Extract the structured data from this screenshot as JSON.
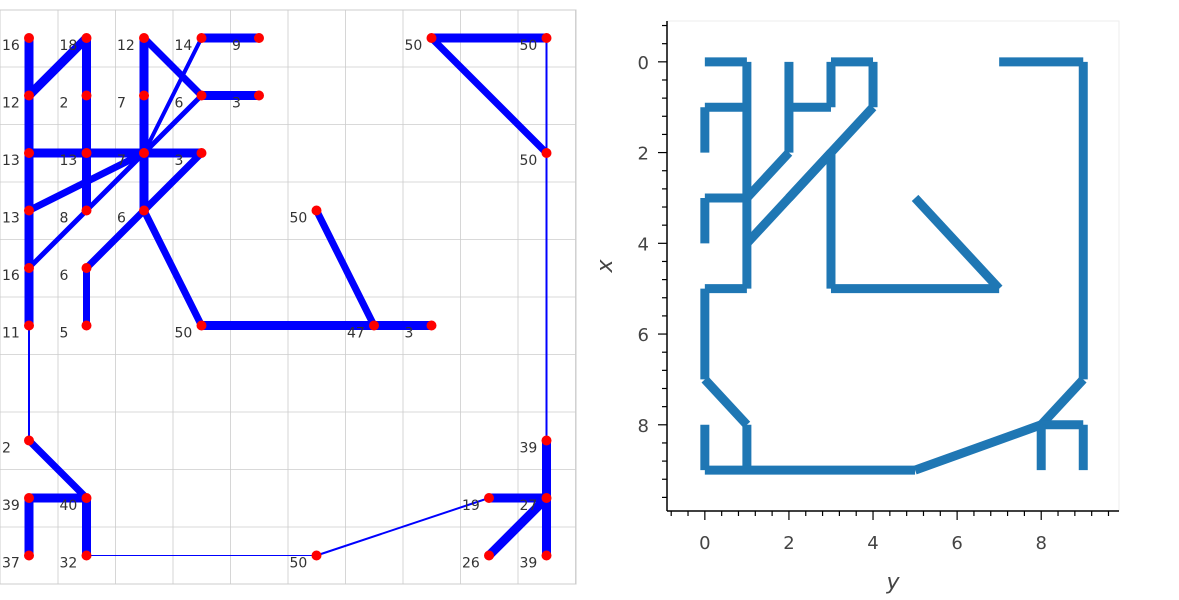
{
  "left_panel": {
    "cols": 10,
    "rows": 10,
    "node_color": "#ff0000",
    "edge_color": "#0000ff",
    "grid_color": "#cccccc",
    "nodes": [
      {
        "id": "n0",
        "c": 0,
        "r": 0,
        "label": "16"
      },
      {
        "id": "n1",
        "c": 1,
        "r": 0,
        "label": "18"
      },
      {
        "id": "n2",
        "c": 2,
        "r": 0,
        "label": "12"
      },
      {
        "id": "n3",
        "c": 3,
        "r": 0,
        "label": "14"
      },
      {
        "id": "n4",
        "c": 4,
        "r": 0,
        "label": "9"
      },
      {
        "id": "n5",
        "c": 7,
        "r": 0,
        "label": "50"
      },
      {
        "id": "n6",
        "c": 9,
        "r": 0,
        "label": "50"
      },
      {
        "id": "n7",
        "c": 0,
        "r": 1,
        "label": "12"
      },
      {
        "id": "n8",
        "c": 1,
        "r": 1,
        "label": "2"
      },
      {
        "id": "n9",
        "c": 2,
        "r": 1,
        "label": "7"
      },
      {
        "id": "n10",
        "c": 3,
        "r": 1,
        "label": "6"
      },
      {
        "id": "n11",
        "c": 4,
        "r": 1,
        "label": "3"
      },
      {
        "id": "n12",
        "c": 0,
        "r": 2,
        "label": "13"
      },
      {
        "id": "n13",
        "c": 1,
        "r": 2,
        "label": "13"
      },
      {
        "id": "n14",
        "c": 2,
        "r": 2,
        "label": "7"
      },
      {
        "id": "n15",
        "c": 3,
        "r": 2,
        "label": "3"
      },
      {
        "id": "n16",
        "c": 9,
        "r": 2,
        "label": "50"
      },
      {
        "id": "n17",
        "c": 0,
        "r": 3,
        "label": "13"
      },
      {
        "id": "n18",
        "c": 1,
        "r": 3,
        "label": "8"
      },
      {
        "id": "n19",
        "c": 2,
        "r": 3,
        "label": "6"
      },
      {
        "id": "n20",
        "c": 5,
        "r": 3,
        "label": "50"
      },
      {
        "id": "n21",
        "c": 0,
        "r": 4,
        "label": "16"
      },
      {
        "id": "n22",
        "c": 1,
        "r": 4,
        "label": "6"
      },
      {
        "id": "n23",
        "c": 0,
        "r": 5,
        "label": "11"
      },
      {
        "id": "n24",
        "c": 1,
        "r": 5,
        "label": "5"
      },
      {
        "id": "n25",
        "c": 3,
        "r": 5,
        "label": "50"
      },
      {
        "id": "n26",
        "c": 6,
        "r": 5,
        "label": "47"
      },
      {
        "id": "n27",
        "c": 7,
        "r": 5,
        "label": "3"
      },
      {
        "id": "n28",
        "c": 0,
        "r": 7,
        "label": "2"
      },
      {
        "id": "n29",
        "c": 9,
        "r": 7,
        "label": "39"
      },
      {
        "id": "n30",
        "c": 0,
        "r": 8,
        "label": "39"
      },
      {
        "id": "n31",
        "c": 1,
        "r": 8,
        "label": "40"
      },
      {
        "id": "n32",
        "c": 8,
        "r": 8,
        "label": "19"
      },
      {
        "id": "n33",
        "c": 9,
        "r": 8,
        "label": "27"
      },
      {
        "id": "n34",
        "c": 0,
        "r": 9,
        "label": "37"
      },
      {
        "id": "n35",
        "c": 1,
        "r": 9,
        "label": "32"
      },
      {
        "id": "n36",
        "c": 5,
        "r": 9,
        "label": "50"
      },
      {
        "id": "n37",
        "c": 8,
        "r": 9,
        "label": "26"
      },
      {
        "id": "n38",
        "c": 9,
        "r": 9,
        "label": "39"
      }
    ],
    "edges": [
      [
        "n0",
        "n7",
        9
      ],
      [
        "n7",
        "n1",
        9
      ],
      [
        "n1",
        "n8",
        9
      ],
      [
        "n8",
        "n13",
        9
      ],
      [
        "n13",
        "n18",
        9
      ],
      [
        "n7",
        "n12",
        9
      ],
      [
        "n12",
        "n17",
        9
      ],
      [
        "n17",
        "n21",
        9
      ],
      [
        "n21",
        "n23",
        9
      ],
      [
        "n23",
        "n28",
        2
      ],
      [
        "n12",
        "n13",
        9
      ],
      [
        "n13",
        "n14",
        9
      ],
      [
        "n14",
        "n15",
        9
      ],
      [
        "n17",
        "n14",
        7
      ],
      [
        "n21",
        "n10",
        5
      ],
      [
        "n2",
        "n9",
        9
      ],
      [
        "n9",
        "n14",
        9
      ],
      [
        "n14",
        "n19",
        9
      ],
      [
        "n2",
        "n10",
        7
      ],
      [
        "n10",
        "n11",
        9
      ],
      [
        "n3",
        "n4",
        9
      ],
      [
        "n3",
        "n14",
        4
      ],
      [
        "n15",
        "n22",
        7
      ],
      [
        "n22",
        "n24",
        7
      ],
      [
        "n19",
        "n25",
        7
      ],
      [
        "n25",
        "n26",
        9
      ],
      [
        "n26",
        "n27",
        9
      ],
      [
        "n20",
        "n26",
        7
      ],
      [
        "n5",
        "n6",
        9
      ],
      [
        "n5",
        "n16",
        7
      ],
      [
        "n6",
        "n16",
        2
      ],
      [
        "n16",
        "n29",
        2
      ],
      [
        "n29",
        "n33",
        9
      ],
      [
        "n33",
        "n38",
        9
      ],
      [
        "n32",
        "n33",
        9
      ],
      [
        "n37",
        "n33",
        9
      ],
      [
        "n28",
        "n31",
        7
      ],
      [
        "n30",
        "n31",
        9
      ],
      [
        "n30",
        "n34",
        9
      ],
      [
        "n31",
        "n35",
        9
      ],
      [
        "n35",
        "n36",
        1
      ],
      [
        "n36",
        "n32",
        2
      ]
    ]
  },
  "right_panel": {
    "xlabel": "y",
    "ylabel": "x",
    "xticks": [
      "0",
      "2",
      "4",
      "6",
      "8"
    ],
    "yticks": [
      "0",
      "2",
      "4",
      "6",
      "8"
    ],
    "xlim": [
      -0.9,
      9.85
    ],
    "ylim": [
      9.9,
      -0.9
    ],
    "line_color": "#1f77b4",
    "segments": [
      [
        [
          0,
          0
        ],
        [
          1,
          0
        ]
      ],
      [
        [
          1,
          0
        ],
        [
          1,
          5
        ]
      ],
      [
        [
          0,
          1
        ],
        [
          1,
          1
        ]
      ],
      [
        [
          0,
          1
        ],
        [
          0,
          2
        ]
      ],
      [
        [
          2,
          0
        ],
        [
          2,
          2
        ]
      ],
      [
        [
          2,
          1
        ],
        [
          3,
          1
        ]
      ],
      [
        [
          3,
          1
        ],
        [
          3,
          0
        ]
      ],
      [
        [
          3,
          0
        ],
        [
          4,
          0
        ]
      ],
      [
        [
          4,
          0
        ],
        [
          4,
          1
        ]
      ],
      [
        [
          4,
          1
        ],
        [
          1,
          4
        ]
      ],
      [
        [
          2,
          2
        ],
        [
          1,
          3
        ]
      ],
      [
        [
          0,
          3
        ],
        [
          1,
          3
        ]
      ],
      [
        [
          0,
          3
        ],
        [
          0,
          4
        ]
      ],
      [
        [
          3,
          2
        ],
        [
          2,
          3
        ]
      ],
      [
        [
          3,
          2
        ],
        [
          3,
          5
        ]
      ],
      [
        [
          3,
          5
        ],
        [
          7,
          5
        ]
      ],
      [
        [
          7,
          5
        ],
        [
          5,
          3
        ]
      ],
      [
        [
          7,
          0
        ],
        [
          9,
          0
        ]
      ],
      [
        [
          9,
          0
        ],
        [
          9,
          7
        ]
      ],
      [
        [
          9,
          7
        ],
        [
          8,
          8
        ]
      ],
      [
        [
          0,
          5
        ],
        [
          1,
          5
        ]
      ],
      [
        [
          0,
          5
        ],
        [
          0,
          7
        ]
      ],
      [
        [
          0,
          7
        ],
        [
          1,
          8
        ]
      ],
      [
        [
          1,
          8
        ],
        [
          1,
          9
        ]
      ],
      [
        [
          0,
          8
        ],
        [
          0,
          9
        ]
      ],
      [
        [
          0,
          9
        ],
        [
          5,
          9
        ]
      ],
      [
        [
          5,
          9
        ],
        [
          8,
          8
        ]
      ],
      [
        [
          8,
          8
        ],
        [
          9,
          8
        ]
      ],
      [
        [
          9,
          8
        ],
        [
          9,
          9
        ]
      ],
      [
        [
          8,
          8
        ],
        [
          8,
          9
        ]
      ]
    ]
  }
}
